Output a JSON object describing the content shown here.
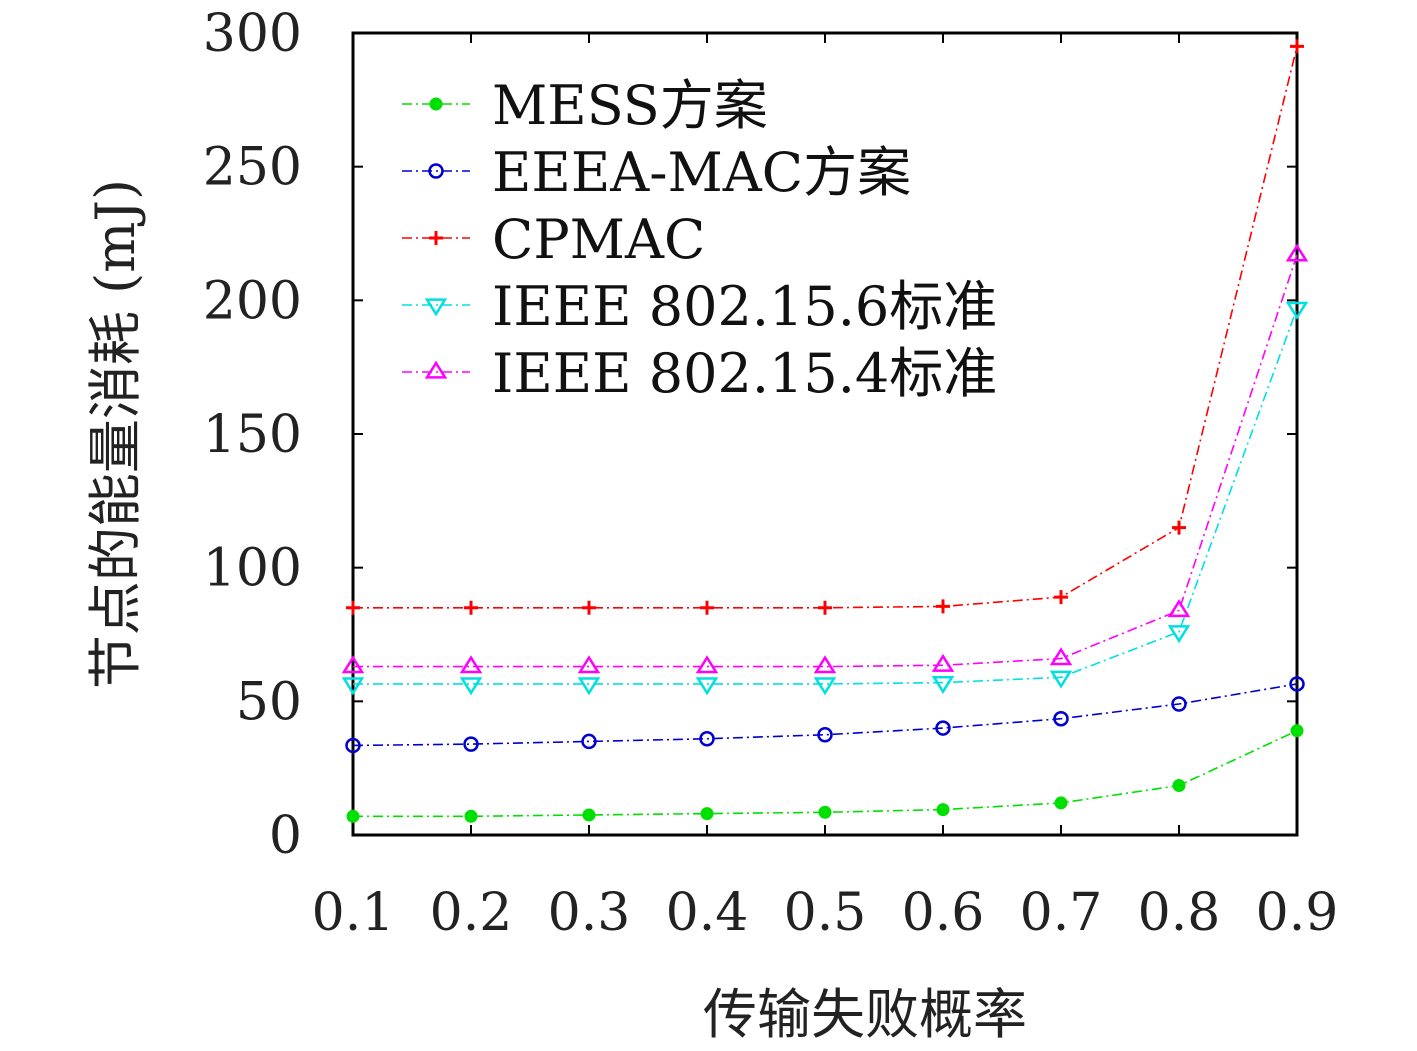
{
  "chart_data": {
    "type": "line",
    "xlabel": "传输失败概率",
    "ylabel": "节点的能量消耗 (mJ)",
    "x": [
      0.1,
      0.2,
      0.3,
      0.4,
      0.5,
      0.6,
      0.7,
      0.8,
      0.9
    ],
    "xlim": [
      0.1,
      0.9
    ],
    "ylim": [
      0,
      300
    ],
    "xticks": [
      "0.1",
      "0.2",
      "0.3",
      "0.4",
      "0.5",
      "0.6",
      "0.7",
      "0.8",
      "0.9"
    ],
    "yticks": [
      "0",
      "50",
      "100",
      "150",
      "200",
      "250",
      "300"
    ],
    "grid": false,
    "legend_position": "top-left",
    "series": [
      {
        "name": "MESS方案",
        "color": "#00e000",
        "marker": "filled-circle",
        "values": [
          7,
          7,
          7.5,
          8,
          8.5,
          9.5,
          12,
          18.5,
          39
        ]
      },
      {
        "name": "EEEA-MAC方案",
        "color": "#0000d0",
        "marker": "circle",
        "values": [
          33.5,
          34,
          35,
          36,
          37.5,
          40,
          43.5,
          49,
          56.5
        ]
      },
      {
        "name": "CPMAC",
        "color": "#ff0000",
        "marker": "plus",
        "values": [
          85,
          85,
          85,
          85,
          85,
          85.5,
          89,
          115,
          295
        ]
      },
      {
        "name": "IEEE 802.15.6标准",
        "color": "#00e0e0",
        "marker": "triangle-down",
        "values": [
          56.5,
          56.5,
          56.5,
          56.5,
          56.5,
          57,
          59,
          76,
          197
        ]
      },
      {
        "name": "IEEE 802.15.4标准",
        "color": "#ff00ff",
        "marker": "triangle-up",
        "values": [
          63,
          63,
          63,
          63,
          63,
          63.5,
          66,
          84,
          217
        ]
      }
    ]
  }
}
